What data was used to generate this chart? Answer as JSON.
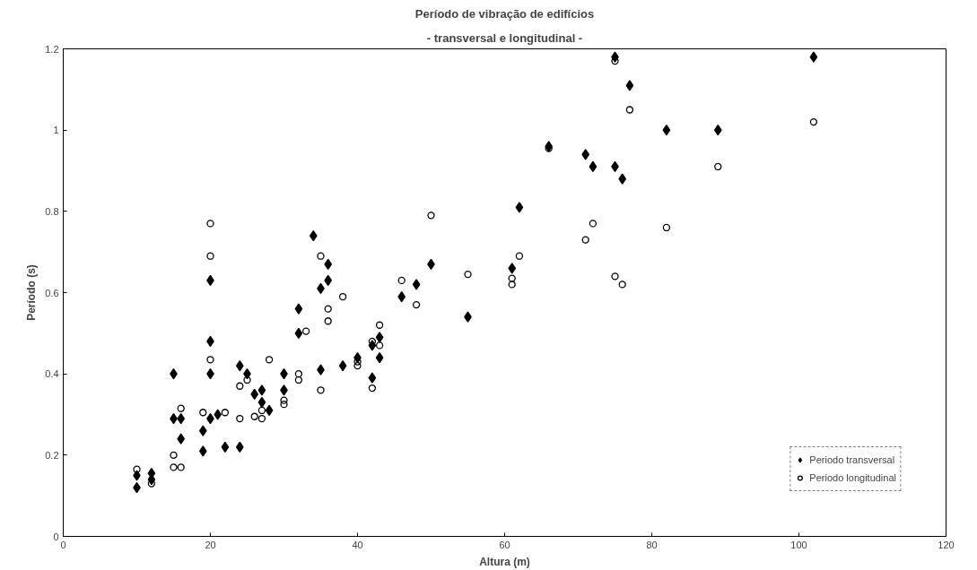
{
  "chart_data": {
    "type": "scatter",
    "title": "Período de vibração de edifícios",
    "subtitle": "- transversal e longitudinal -",
    "xlabel": "Altura (m)",
    "ylabel": "Período (s)",
    "xlim": [
      0,
      120
    ],
    "xticks": [
      0,
      20,
      40,
      60,
      80,
      100,
      120
    ],
    "ylim": [
      0,
      1.2
    ],
    "yticks": [
      0,
      0.2,
      0.4,
      0.6,
      0.8,
      1,
      1.2
    ],
    "grid": false,
    "legend": "bottom right",
    "series": [
      {
        "name": "Periodo transversal",
        "color": "#000000",
        "marker": "diamond",
        "x": [
          10,
          10,
          12,
          12,
          15,
          15,
          16,
          16,
          19,
          19,
          20,
          20,
          20,
          20,
          21,
          22,
          24,
          24,
          25,
          26,
          27,
          27,
          28,
          30,
          30,
          32,
          32,
          34,
          35,
          35,
          36,
          36,
          38,
          40,
          42,
          42,
          43,
          43,
          46,
          48,
          50,
          55,
          61,
          62,
          66,
          71,
          72,
          75,
          75,
          76,
          77,
          82,
          89,
          102
        ],
        "values": [
          0.15,
          0.12,
          0.155,
          0.14,
          0.4,
          0.29,
          0.29,
          0.24,
          0.26,
          0.21,
          0.63,
          0.48,
          0.4,
          0.29,
          0.3,
          0.22,
          0.42,
          0.22,
          0.4,
          0.35,
          0.36,
          0.33,
          0.31,
          0.4,
          0.36,
          0.56,
          0.5,
          0.74,
          0.61,
          0.41,
          0.67,
          0.63,
          0.42,
          0.44,
          0.47,
          0.39,
          0.49,
          0.44,
          0.59,
          0.62,
          0.67,
          0.54,
          0.66,
          0.81,
          0.96,
          0.94,
          0.91,
          1.18,
          0.91,
          0.88,
          1.11,
          1.0,
          1.0,
          1.18
        ]
      },
      {
        "name": "Periodo longitudinal",
        "color": "#000000",
        "marker": "circle",
        "x": [
          10,
          12,
          15,
          15,
          16,
          16,
          19,
          20,
          20,
          20,
          22,
          24,
          24,
          25,
          26,
          27,
          27,
          28,
          30,
          30,
          32,
          32,
          33,
          35,
          35,
          36,
          36,
          38,
          40,
          40,
          42,
          42,
          43,
          43,
          46,
          48,
          50,
          55,
          61,
          61,
          62,
          66,
          71,
          72,
          75,
          75,
          76,
          77,
          82,
          89,
          102
        ],
        "values": [
          0.165,
          0.13,
          0.2,
          0.17,
          0.315,
          0.17,
          0.305,
          0.77,
          0.69,
          0.435,
          0.305,
          0.37,
          0.29,
          0.385,
          0.295,
          0.31,
          0.29,
          0.435,
          0.335,
          0.325,
          0.4,
          0.385,
          0.505,
          0.69,
          0.36,
          0.56,
          0.53,
          0.59,
          0.43,
          0.42,
          0.48,
          0.365,
          0.52,
          0.47,
          0.63,
          0.57,
          0.79,
          0.645,
          0.635,
          0.62,
          0.69,
          0.955,
          0.73,
          0.77,
          1.17,
          0.64,
          0.62,
          1.05,
          0.76,
          0.91,
          1.02
        ]
      }
    ]
  }
}
